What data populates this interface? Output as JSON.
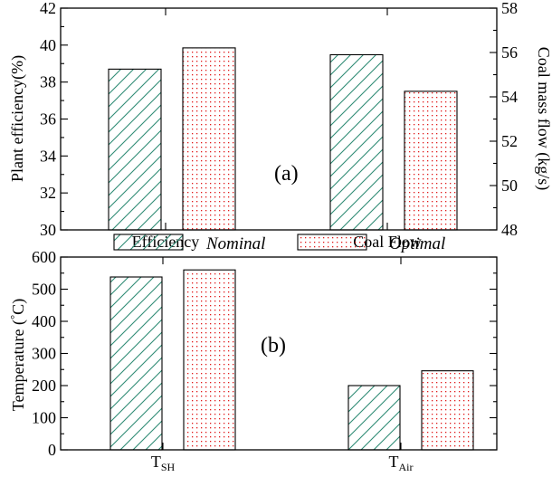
{
  "legend": {
    "items": [
      {
        "label": "Nominal",
        "pattern": "hatch"
      },
      {
        "label": "Optimal",
        "pattern": "dots"
      }
    ],
    "placement": "between-panels"
  },
  "colors": {
    "nominal_hatch": "#2e8b74",
    "optimal_dots": "#e01818",
    "axes": "#000000",
    "background": "#ffffff"
  },
  "chart_data": [
    {
      "type": "bar",
      "panel_label": "(a)",
      "categories": [
        "Efficiency",
        "Coal Flow"
      ],
      "series": [
        {
          "name": "Nominal",
          "values": [
            38.7,
            55.9
          ]
        },
        {
          "name": "Optimal",
          "values": [
            39.85,
            54.25
          ]
        }
      ],
      "series_axis": [
        [
          "left",
          "right"
        ],
        [
          "left",
          "right"
        ]
      ],
      "ylabel": "Plant efficiency(%)",
      "ylim": [
        30,
        42
      ],
      "yticks": [
        30,
        32,
        34,
        36,
        38,
        40,
        42
      ],
      "y2label": "Coal mass flow (kg/s)",
      "y2lim": [
        48,
        58
      ],
      "y2ticks": [
        48,
        50,
        52,
        54,
        56,
        58
      ],
      "grid": false
    },
    {
      "type": "bar",
      "panel_label": "(b)",
      "categories": [
        {
          "main": "T",
          "sub": "SH"
        },
        {
          "main": "T",
          "sub": "Air"
        }
      ],
      "series": [
        {
          "name": "Nominal",
          "values": [
            538,
            200
          ]
        },
        {
          "name": "Optimal",
          "values": [
            560,
            246
          ]
        }
      ],
      "ylabel": "Temperature (°C)",
      "ylabel_parts": {
        "pre": "Temperature (",
        "sup": "°",
        "post": "C)"
      },
      "ylim": [
        0,
        600
      ],
      "yticks": [
        0,
        100,
        200,
        300,
        400,
        500,
        600
      ],
      "grid": false
    }
  ]
}
